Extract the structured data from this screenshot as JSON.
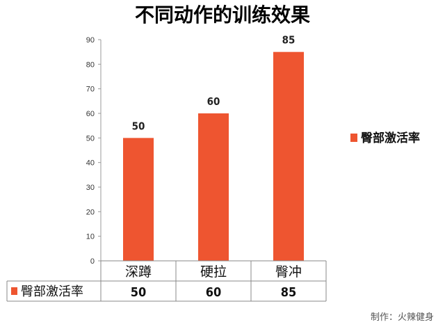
{
  "chart_data": {
    "type": "bar",
    "title": "不同动作的训练效果",
    "categories": [
      "深蹲",
      "硬拉",
      "臀冲"
    ],
    "series": [
      {
        "name": "臀部激活率",
        "values": [
          50,
          60,
          85
        ],
        "color": "#EE5530"
      }
    ],
    "ylim": [
      0,
      90
    ],
    "yticks": [
      0,
      10,
      20,
      30,
      40,
      50,
      60,
      70,
      80,
      90
    ],
    "grid": false,
    "legend": "right",
    "data_table": true
  },
  "credit": "制作：火辣健身"
}
